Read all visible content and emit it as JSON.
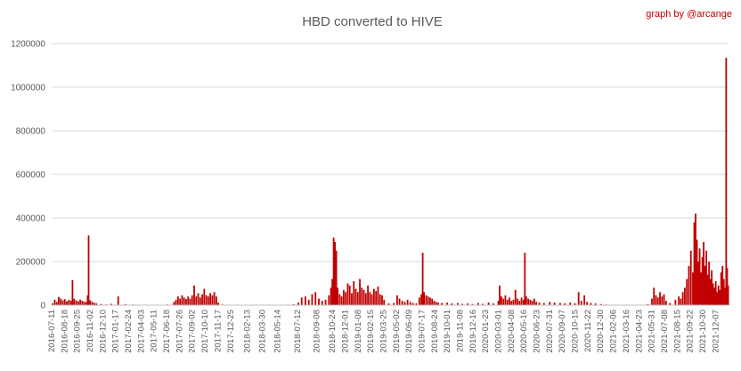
{
  "chart_data": {
    "type": "bar",
    "title": "HBD converted to HIVE",
    "credit": "graph by @arcange",
    "xlabel": "",
    "ylabel": "",
    "ylim": [
      0,
      1200000
    ],
    "grid": true,
    "legend": "none",
    "bar_color": "#c00000",
    "y_ticks": [
      "0",
      "200000",
      "400000",
      "600000",
      "800000",
      "1000000",
      "1200000"
    ],
    "x_ticks": [
      "2016-07-11",
      "2016-08-18",
      "2016-09-25",
      "2016-11-02",
      "2016-12-10",
      "2017-01-17",
      "2017-02-24",
      "2017-04-03",
      "2017-05-11",
      "2017-06-18",
      "2017-07-26",
      "2017-09-02",
      "2017-10-10",
      "2017-11-17",
      "2017-12-25",
      "2018-02-13",
      "2018-03-30",
      "2018-05-14",
      "2018-07-12",
      "2018-09-08",
      "2018-10-24",
      "2018-12-01",
      "2019-01-08",
      "2019-02-15",
      "2019-03-25",
      "2019-05-02",
      "2019-06-09",
      "2019-07-17",
      "2019-08-24",
      "2019-10-01",
      "2019-11-08",
      "2019-12-16",
      "2020-01-23",
      "2020-03-01",
      "2020-04-08",
      "2020-05-16",
      "2020-06-23",
      "2020-07-31",
      "2020-09-07",
      "2020-10-15",
      "2020-11-22",
      "2020-12-30",
      "2021-02-06",
      "2021-03-16",
      "2021-04-23",
      "2021-05-31",
      "2021-07-08",
      "2021-08-15",
      "2021-09-22",
      "2021-10-30",
      "2021-12-07"
    ],
    "x_range": [
      "2016-07-11",
      "2022-01-15"
    ],
    "series": [
      {
        "points": [
          [
            "2016-07-14",
            8000
          ],
          [
            "2016-07-20",
            25000
          ],
          [
            "2016-07-26",
            15000
          ],
          [
            "2016-08-01",
            38000
          ],
          [
            "2016-08-07",
            30000
          ],
          [
            "2016-08-13",
            22000
          ],
          [
            "2016-08-19",
            28000
          ],
          [
            "2016-08-25",
            18000
          ],
          [
            "2016-08-31",
            25000
          ],
          [
            "2016-09-06",
            20000
          ],
          [
            "2016-09-11",
            115000
          ],
          [
            "2016-09-16",
            30000
          ],
          [
            "2016-09-22",
            22000
          ],
          [
            "2016-09-28",
            18000
          ],
          [
            "2016-10-04",
            26000
          ],
          [
            "2016-10-10",
            20000
          ],
          [
            "2016-10-16",
            16000
          ],
          [
            "2016-10-22",
            14000
          ],
          [
            "2016-10-26",
            45000
          ],
          [
            "2016-10-29",
            320000
          ],
          [
            "2016-11-03",
            22000
          ],
          [
            "2016-11-09",
            15000
          ],
          [
            "2016-11-15",
            10000
          ],
          [
            "2016-11-21",
            8000
          ],
          [
            "2016-12-05",
            5000
          ],
          [
            "2016-12-20",
            3000
          ],
          [
            "2017-01-05",
            6000
          ],
          [
            "2017-01-25",
            40000
          ],
          [
            "2017-02-15",
            4000
          ],
          [
            "2017-03-10",
            3000
          ],
          [
            "2017-04-05",
            2000
          ],
          [
            "2017-05-01",
            2000
          ],
          [
            "2017-05-25",
            1500
          ],
          [
            "2017-06-20",
            3000
          ],
          [
            "2017-07-10",
            15000
          ],
          [
            "2017-07-16",
            25000
          ],
          [
            "2017-07-22",
            40000
          ],
          [
            "2017-07-28",
            30000
          ],
          [
            "2017-08-03",
            45000
          ],
          [
            "2017-08-09",
            35000
          ],
          [
            "2017-08-15",
            28000
          ],
          [
            "2017-08-21",
            40000
          ],
          [
            "2017-08-27",
            30000
          ],
          [
            "2017-09-02",
            45000
          ],
          [
            "2017-09-08",
            90000
          ],
          [
            "2017-09-14",
            40000
          ],
          [
            "2017-09-20",
            55000
          ],
          [
            "2017-09-26",
            35000
          ],
          [
            "2017-10-02",
            50000
          ],
          [
            "2017-10-08",
            75000
          ],
          [
            "2017-10-14",
            45000
          ],
          [
            "2017-10-20",
            40000
          ],
          [
            "2017-10-26",
            55000
          ],
          [
            "2017-11-01",
            45000
          ],
          [
            "2017-11-07",
            60000
          ],
          [
            "2017-11-13",
            40000
          ],
          [
            "2017-11-19",
            12000
          ],
          [
            "2017-12-01",
            3000
          ],
          [
            "2018-01-01",
            2000
          ],
          [
            "2018-02-01",
            1500
          ],
          [
            "2018-03-01",
            1000
          ],
          [
            "2018-04-01",
            1000
          ],
          [
            "2018-05-01",
            1500
          ],
          [
            "2018-06-01",
            2000
          ],
          [
            "2018-07-01",
            4000
          ],
          [
            "2018-07-15",
            12000
          ],
          [
            "2018-07-25",
            35000
          ],
          [
            "2018-08-05",
            40000
          ],
          [
            "2018-08-15",
            25000
          ],
          [
            "2018-08-25",
            50000
          ],
          [
            "2018-09-04",
            60000
          ],
          [
            "2018-09-14",
            30000
          ],
          [
            "2018-09-24",
            20000
          ],
          [
            "2018-10-04",
            25000
          ],
          [
            "2018-10-14",
            45000
          ],
          [
            "2018-10-20",
            80000
          ],
          [
            "2018-10-24",
            120000
          ],
          [
            "2018-10-28",
            310000
          ],
          [
            "2018-11-01",
            290000
          ],
          [
            "2018-11-05",
            250000
          ],
          [
            "2018-11-09",
            80000
          ],
          [
            "2018-11-15",
            50000
          ],
          [
            "2018-11-21",
            40000
          ],
          [
            "2018-11-27",
            70000
          ],
          [
            "2018-12-03",
            60000
          ],
          [
            "2018-12-09",
            100000
          ],
          [
            "2018-12-15",
            90000
          ],
          [
            "2018-12-21",
            55000
          ],
          [
            "2018-12-27",
            110000
          ],
          [
            "2019-01-02",
            75000
          ],
          [
            "2019-01-08",
            60000
          ],
          [
            "2019-01-14",
            120000
          ],
          [
            "2019-01-20",
            80000
          ],
          [
            "2019-01-26",
            70000
          ],
          [
            "2019-02-01",
            55000
          ],
          [
            "2019-02-07",
            90000
          ],
          [
            "2019-02-13",
            60000
          ],
          [
            "2019-02-19",
            50000
          ],
          [
            "2019-02-25",
            75000
          ],
          [
            "2019-03-03",
            65000
          ],
          [
            "2019-03-09",
            85000
          ],
          [
            "2019-03-15",
            50000
          ],
          [
            "2019-03-21",
            45000
          ],
          [
            "2019-03-27",
            25000
          ],
          [
            "2019-04-10",
            8000
          ],
          [
            "2019-04-25",
            10000
          ],
          [
            "2019-05-05",
            45000
          ],
          [
            "2019-05-12",
            30000
          ],
          [
            "2019-05-20",
            20000
          ],
          [
            "2019-05-28",
            15000
          ],
          [
            "2019-06-05",
            25000
          ],
          [
            "2019-06-13",
            15000
          ],
          [
            "2019-06-21",
            10000
          ],
          [
            "2019-07-01",
            8000
          ],
          [
            "2019-07-10",
            35000
          ],
          [
            "2019-07-16",
            50000
          ],
          [
            "2019-07-20",
            240000
          ],
          [
            "2019-07-24",
            60000
          ],
          [
            "2019-07-30",
            45000
          ],
          [
            "2019-08-05",
            40000
          ],
          [
            "2019-08-11",
            35000
          ],
          [
            "2019-08-17",
            30000
          ],
          [
            "2019-08-23",
            20000
          ],
          [
            "2019-08-29",
            15000
          ],
          [
            "2019-09-04",
            12000
          ],
          [
            "2019-09-15",
            10000
          ],
          [
            "2019-10-01",
            12000
          ],
          [
            "2019-10-15",
            8000
          ],
          [
            "2019-11-01",
            10000
          ],
          [
            "2019-11-15",
            6000
          ],
          [
            "2019-12-01",
            8000
          ],
          [
            "2019-12-15",
            5000
          ],
          [
            "2020-01-01",
            10000
          ],
          [
            "2020-01-15",
            6000
          ],
          [
            "2020-02-01",
            12000
          ],
          [
            "2020-02-15",
            8000
          ],
          [
            "2020-03-01",
            20000
          ],
          [
            "2020-03-05",
            90000
          ],
          [
            "2020-03-10",
            40000
          ],
          [
            "2020-03-16",
            30000
          ],
          [
            "2020-03-22",
            45000
          ],
          [
            "2020-03-28",
            25000
          ],
          [
            "2020-04-03",
            35000
          ],
          [
            "2020-04-09",
            20000
          ],
          [
            "2020-04-15",
            25000
          ],
          [
            "2020-04-21",
            70000
          ],
          [
            "2020-04-27",
            30000
          ],
          [
            "2020-05-03",
            20000
          ],
          [
            "2020-05-09",
            35000
          ],
          [
            "2020-05-15",
            25000
          ],
          [
            "2020-05-19",
            240000
          ],
          [
            "2020-05-23",
            40000
          ],
          [
            "2020-05-29",
            30000
          ],
          [
            "2020-06-04",
            25000
          ],
          [
            "2020-06-10",
            20000
          ],
          [
            "2020-06-16",
            30000
          ],
          [
            "2020-06-22",
            15000
          ],
          [
            "2020-07-01",
            12000
          ],
          [
            "2020-07-15",
            10000
          ],
          [
            "2020-08-01",
            15000
          ],
          [
            "2020-08-15",
            12000
          ],
          [
            "2020-09-01",
            10000
          ],
          [
            "2020-09-15",
            8000
          ],
          [
            "2020-10-01",
            12000
          ],
          [
            "2020-10-15",
            8000
          ],
          [
            "2020-10-26",
            60000
          ],
          [
            "2020-11-03",
            20000
          ],
          [
            "2020-11-12",
            45000
          ],
          [
            "2020-11-20",
            15000
          ],
          [
            "2020-12-01",
            10000
          ],
          [
            "2020-12-15",
            8000
          ],
          [
            "2021-01-01",
            5000
          ],
          [
            "2021-01-15",
            3000
          ],
          [
            "2021-02-01",
            2000
          ],
          [
            "2021-03-01",
            1500
          ],
          [
            "2021-04-01",
            1000
          ],
          [
            "2021-05-01",
            1500
          ],
          [
            "2021-05-20",
            5000
          ],
          [
            "2021-06-01",
            30000
          ],
          [
            "2021-06-07",
            80000
          ],
          [
            "2021-06-13",
            45000
          ],
          [
            "2021-06-19",
            35000
          ],
          [
            "2021-06-25",
            60000
          ],
          [
            "2021-07-01",
            40000
          ],
          [
            "2021-07-07",
            50000
          ],
          [
            "2021-07-13",
            20000
          ],
          [
            "2021-07-25",
            10000
          ],
          [
            "2021-08-10",
            25000
          ],
          [
            "2021-08-20",
            40000
          ],
          [
            "2021-08-26",
            30000
          ],
          [
            "2021-09-01",
            60000
          ],
          [
            "2021-09-07",
            80000
          ],
          [
            "2021-09-13",
            120000
          ],
          [
            "2021-09-19",
            180000
          ],
          [
            "2021-09-25",
            250000
          ],
          [
            "2021-10-01",
            150000
          ],
          [
            "2021-10-05",
            380000
          ],
          [
            "2021-10-09",
            420000
          ],
          [
            "2021-10-13",
            300000
          ],
          [
            "2021-10-17",
            200000
          ],
          [
            "2021-10-21",
            260000
          ],
          [
            "2021-10-25",
            150000
          ],
          [
            "2021-10-29",
            220000
          ],
          [
            "2021-11-02",
            290000
          ],
          [
            "2021-11-06",
            180000
          ],
          [
            "2021-11-10",
            250000
          ],
          [
            "2021-11-14",
            140000
          ],
          [
            "2021-11-18",
            200000
          ],
          [
            "2021-11-22",
            120000
          ],
          [
            "2021-11-26",
            160000
          ],
          [
            "2021-11-30",
            100000
          ],
          [
            "2021-12-04",
            80000
          ],
          [
            "2021-12-08",
            110000
          ],
          [
            "2021-12-12",
            60000
          ],
          [
            "2021-12-16",
            90000
          ],
          [
            "2021-12-20",
            70000
          ],
          [
            "2021-12-24",
            150000
          ],
          [
            "2021-12-28",
            180000
          ],
          [
            "2022-01-01",
            120000
          ],
          [
            "2022-01-04",
            80000
          ],
          [
            "2022-01-08",
            1135000
          ],
          [
            "2022-01-11",
            170000
          ],
          [
            "2022-01-14",
            90000
          ]
        ]
      }
    ]
  }
}
